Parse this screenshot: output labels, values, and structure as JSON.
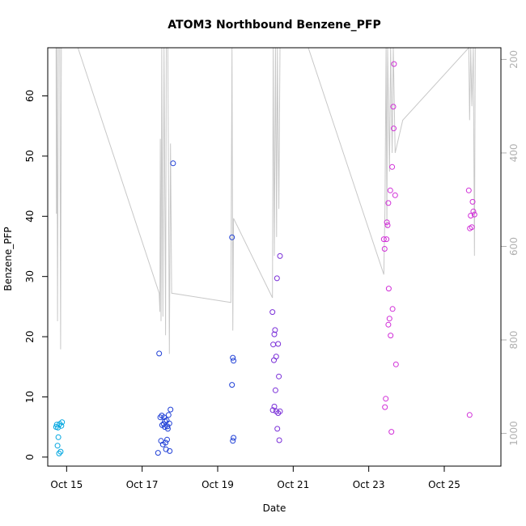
{
  "chart_data": {
    "type": "scatter",
    "title": "ATOM3 Northbound Benzene_PFP",
    "xlabel": "Date",
    "ylabel": "Benzene_PFP",
    "xlim": [
      14.5,
      26.5
    ],
    "ylim": [
      -1.5,
      68.0
    ],
    "x_ticks": [
      {
        "value": 15,
        "label": "Oct 15"
      },
      {
        "value": 17,
        "label": "Oct 17"
      },
      {
        "value": 19,
        "label": "Oct 19"
      },
      {
        "value": 21,
        "label": "Oct 21"
      },
      {
        "value": 23,
        "label": "Oct 23"
      },
      {
        "value": 25,
        "label": "Oct 25"
      }
    ],
    "y_ticks": [
      0,
      10,
      20,
      30,
      40,
      50,
      60
    ],
    "right_axis": {
      "range": [
        1070,
        175
      ],
      "ticks": [
        200,
        400,
        600,
        800,
        1000
      ],
      "color": "#b0b0b0"
    },
    "grid": false,
    "legend": "none",
    "colors": {
      "cyan": "#00a6e0",
      "blue": "#1f3fd6",
      "purple": "#7a2fd8",
      "magenta": "#d12fd8",
      "line": "#c8c8c8"
    },
    "series": [
      {
        "color": "cyan",
        "points": [
          [
            14.72,
            5.0
          ],
          [
            14.74,
            5.4
          ],
          [
            14.76,
            1.9
          ],
          [
            14.78,
            3.3
          ],
          [
            14.8,
            0.6
          ],
          [
            14.82,
            5.5
          ],
          [
            14.84,
            0.9
          ],
          [
            14.86,
            5.2
          ],
          [
            14.88,
            5.8
          ],
          [
            14.77,
            4.9
          ]
        ]
      },
      {
        "color": "blue",
        "points": [
          [
            17.45,
            17.2
          ],
          [
            17.48,
            6.6
          ],
          [
            17.5,
            2.7
          ],
          [
            17.52,
            6.9
          ],
          [
            17.53,
            5.3
          ],
          [
            17.55,
            2.1
          ],
          [
            17.57,
            5.5
          ],
          [
            17.58,
            6.6
          ],
          [
            17.6,
            5.0
          ],
          [
            17.62,
            2.4
          ],
          [
            17.63,
            1.3
          ],
          [
            17.65,
            6.1
          ],
          [
            17.66,
            2.9
          ],
          [
            17.67,
            5.1
          ],
          [
            17.68,
            4.7
          ],
          [
            17.7,
            7.0
          ],
          [
            17.72,
            5.6
          ],
          [
            17.73,
            1.0
          ],
          [
            17.75,
            7.9
          ],
          [
            17.82,
            48.8
          ],
          [
            17.42,
            0.7
          ],
          [
            17.6,
            6.0
          ]
        ]
      },
      {
        "color": "blue",
        "points": [
          [
            19.38,
            36.5
          ],
          [
            19.4,
            16.5
          ],
          [
            19.42,
            16.0
          ],
          [
            19.38,
            12.0
          ],
          [
            19.42,
            3.2
          ],
          [
            19.4,
            2.7
          ]
        ]
      },
      {
        "color": "purple",
        "points": [
          [
            20.45,
            24.1
          ],
          [
            20.47,
            18.7
          ],
          [
            20.49,
            16.1
          ],
          [
            20.5,
            20.4
          ],
          [
            20.52,
            21.1
          ],
          [
            20.53,
            11.1
          ],
          [
            20.55,
            16.7
          ],
          [
            20.57,
            29.7
          ],
          [
            20.58,
            4.7
          ],
          [
            20.6,
            18.8
          ],
          [
            20.62,
            13.4
          ],
          [
            20.63,
            2.8
          ],
          [
            20.65,
            33.4
          ],
          [
            20.46,
            7.8
          ],
          [
            20.5,
            8.4
          ],
          [
            20.55,
            7.6
          ],
          [
            20.6,
            7.3
          ],
          [
            20.65,
            7.6
          ]
        ]
      },
      {
        "color": "magenta",
        "points": [
          [
            23.4,
            36.2
          ],
          [
            23.42,
            34.6
          ],
          [
            23.43,
            8.3
          ],
          [
            23.45,
            9.7
          ],
          [
            23.47,
            36.2
          ],
          [
            23.48,
            39.0
          ],
          [
            23.5,
            38.5
          ],
          [
            23.52,
            42.2
          ],
          [
            23.53,
            28.0
          ],
          [
            23.55,
            23.0
          ],
          [
            23.52,
            22.0
          ],
          [
            23.57,
            44.3
          ],
          [
            23.58,
            20.2
          ],
          [
            23.6,
            4.2
          ],
          [
            23.62,
            48.2
          ],
          [
            23.63,
            24.6
          ],
          [
            23.65,
            58.2
          ],
          [
            23.66,
            54.6
          ],
          [
            23.67,
            65.3
          ],
          [
            23.7,
            43.5
          ],
          [
            23.72,
            15.4
          ]
        ]
      },
      {
        "color": "magenta",
        "points": [
          [
            25.65,
            44.3
          ],
          [
            25.68,
            38.0
          ],
          [
            25.7,
            40.1
          ],
          [
            25.73,
            38.2
          ],
          [
            25.75,
            42.4
          ],
          [
            25.77,
            40.8
          ],
          [
            25.8,
            40.3
          ],
          [
            25.67,
            7.0
          ]
        ]
      }
    ]
  }
}
